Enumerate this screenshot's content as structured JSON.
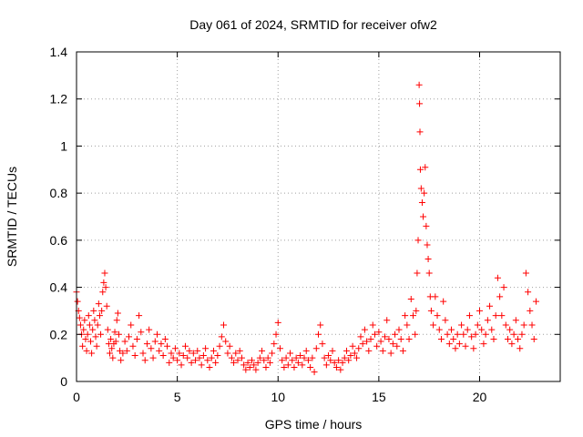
{
  "chart_data": {
    "type": "scatter",
    "title": "Day 061 of 2024, SRMTID for receiver ofw2",
    "xlabel": "GPS time / hours",
    "ylabel": "SRMTID / TECUs",
    "xlim": [
      0,
      24
    ],
    "ylim": [
      0,
      1.4
    ],
    "xticks": [
      0,
      5,
      10,
      15,
      20
    ],
    "xtick_labels": [
      "0",
      "5",
      "10",
      "15",
      "20"
    ],
    "yticks": [
      0,
      0.2,
      0.4,
      0.6,
      0.8,
      1.0,
      1.2,
      1.4
    ],
    "ytick_labels": [
      "0",
      "0.2",
      "0.4",
      "0.6",
      "0.8",
      "1",
      "1.2",
      "1.4"
    ],
    "grid": true,
    "marker": "+",
    "series_color": "#ff0000",
    "series": [
      {
        "name": "SRMTID",
        "points": [
          [
            0.0,
            0.38
          ],
          [
            0.05,
            0.34
          ],
          [
            0.1,
            0.3
          ],
          [
            0.15,
            0.27
          ],
          [
            0.2,
            0.24
          ],
          [
            0.25,
            0.2
          ],
          [
            0.3,
            0.15
          ],
          [
            0.35,
            0.22
          ],
          [
            0.4,
            0.26
          ],
          [
            0.45,
            0.18
          ],
          [
            0.5,
            0.13
          ],
          [
            0.55,
            0.2
          ],
          [
            0.6,
            0.28
          ],
          [
            0.65,
            0.24
          ],
          [
            0.7,
            0.17
          ],
          [
            0.75,
            0.12
          ],
          [
            0.8,
            0.22
          ],
          [
            0.85,
            0.3
          ],
          [
            0.9,
            0.26
          ],
          [
            0.95,
            0.19
          ],
          [
            1.0,
            0.15
          ],
          [
            1.05,
            0.24
          ],
          [
            1.1,
            0.33
          ],
          [
            1.15,
            0.28
          ],
          [
            1.2,
            0.2
          ],
          [
            1.25,
            0.3
          ],
          [
            1.3,
            0.38
          ],
          [
            1.35,
            0.42
          ],
          [
            1.4,
            0.46
          ],
          [
            1.45,
            0.4
          ],
          [
            1.5,
            0.32
          ],
          [
            1.55,
            0.22
          ],
          [
            1.6,
            0.16
          ],
          [
            1.65,
            0.12
          ],
          [
            1.7,
            0.18
          ],
          [
            1.75,
            0.14
          ],
          [
            1.8,
            0.1
          ],
          [
            1.85,
            0.16
          ],
          [
            1.9,
            0.21
          ],
          [
            1.95,
            0.17
          ],
          [
            2.0,
            0.26
          ],
          [
            2.05,
            0.29
          ],
          [
            2.1,
            0.2
          ],
          [
            2.15,
            0.13
          ],
          [
            2.2,
            0.09
          ],
          [
            2.3,
            0.12
          ],
          [
            2.4,
            0.17
          ],
          [
            2.5,
            0.13
          ],
          [
            2.6,
            0.19
          ],
          [
            2.7,
            0.24
          ],
          [
            2.8,
            0.15
          ],
          [
            2.9,
            0.11
          ],
          [
            3.0,
            0.18
          ],
          [
            3.1,
            0.28
          ],
          [
            3.2,
            0.21
          ],
          [
            3.3,
            0.12
          ],
          [
            3.4,
            0.09
          ],
          [
            3.5,
            0.16
          ],
          [
            3.6,
            0.22
          ],
          [
            3.7,
            0.14
          ],
          [
            3.8,
            0.1
          ],
          [
            3.9,
            0.17
          ],
          [
            4.0,
            0.2
          ],
          [
            4.1,
            0.13
          ],
          [
            4.2,
            0.16
          ],
          [
            4.3,
            0.11
          ],
          [
            4.4,
            0.18
          ],
          [
            4.5,
            0.15
          ],
          [
            4.6,
            0.08
          ],
          [
            4.7,
            0.12
          ],
          [
            4.8,
            0.1
          ],
          [
            4.9,
            0.14
          ],
          [
            5.0,
            0.09
          ],
          [
            5.1,
            0.12
          ],
          [
            5.2,
            0.07
          ],
          [
            5.3,
            0.11
          ],
          [
            5.4,
            0.15
          ],
          [
            5.5,
            0.1
          ],
          [
            5.6,
            0.13
          ],
          [
            5.7,
            0.08
          ],
          [
            5.8,
            0.12
          ],
          [
            5.9,
            0.09
          ],
          [
            6.0,
            0.13
          ],
          [
            6.1,
            0.1
          ],
          [
            6.2,
            0.07
          ],
          [
            6.3,
            0.11
          ],
          [
            6.4,
            0.14
          ],
          [
            6.5,
            0.09
          ],
          [
            6.6,
            0.06
          ],
          [
            6.7,
            0.1
          ],
          [
            6.8,
            0.13
          ],
          [
            6.9,
            0.08
          ],
          [
            7.0,
            0.11
          ],
          [
            7.1,
            0.15
          ],
          [
            7.2,
            0.19
          ],
          [
            7.3,
            0.24
          ],
          [
            7.4,
            0.17
          ],
          [
            7.5,
            0.12
          ],
          [
            7.6,
            0.15
          ],
          [
            7.7,
            0.1
          ],
          [
            7.8,
            0.08
          ],
          [
            7.9,
            0.12
          ],
          [
            8.0,
            0.09
          ],
          [
            8.1,
            0.13
          ],
          [
            8.2,
            0.1
          ],
          [
            8.3,
            0.07
          ],
          [
            8.4,
            0.05
          ],
          [
            8.5,
            0.08
          ],
          [
            8.6,
            0.06
          ],
          [
            8.7,
            0.09
          ],
          [
            8.8,
            0.07
          ],
          [
            8.9,
            0.05
          ],
          [
            9.0,
            0.08
          ],
          [
            9.1,
            0.1
          ],
          [
            9.2,
            0.13
          ],
          [
            9.3,
            0.09
          ],
          [
            9.4,
            0.06
          ],
          [
            9.5,
            0.1
          ],
          [
            9.6,
            0.08
          ],
          [
            9.7,
            0.12
          ],
          [
            9.8,
            0.16
          ],
          [
            9.9,
            0.2
          ],
          [
            10.0,
            0.25
          ],
          [
            10.1,
            0.14
          ],
          [
            10.2,
            0.09
          ],
          [
            10.3,
            0.06
          ],
          [
            10.4,
            0.1
          ],
          [
            10.5,
            0.07
          ],
          [
            10.6,
            0.12
          ],
          [
            10.7,
            0.09
          ],
          [
            10.8,
            0.06
          ],
          [
            10.9,
            0.1
          ],
          [
            11.0,
            0.08
          ],
          [
            11.1,
            0.11
          ],
          [
            11.2,
            0.07
          ],
          [
            11.3,
            0.1
          ],
          [
            11.4,
            0.13
          ],
          [
            11.5,
            0.09
          ],
          [
            11.6,
            0.06
          ],
          [
            11.7,
            0.1
          ],
          [
            11.8,
            0.04
          ],
          [
            11.9,
            0.14
          ],
          [
            12.0,
            0.2
          ],
          [
            12.1,
            0.24
          ],
          [
            12.2,
            0.16
          ],
          [
            12.3,
            0.1
          ],
          [
            12.4,
            0.07
          ],
          [
            12.5,
            0.11
          ],
          [
            12.6,
            0.09
          ],
          [
            12.7,
            0.13
          ],
          [
            12.8,
            0.08
          ],
          [
            12.9,
            0.06
          ],
          [
            13.0,
            0.09
          ],
          [
            13.1,
            0.05
          ],
          [
            13.2,
            0.08
          ],
          [
            13.3,
            0.1
          ],
          [
            13.4,
            0.13
          ],
          [
            13.5,
            0.09
          ],
          [
            13.6,
            0.11
          ],
          [
            13.7,
            0.15
          ],
          [
            13.8,
            0.12
          ],
          [
            13.9,
            0.1
          ],
          [
            14.0,
            0.14
          ],
          [
            14.1,
            0.19
          ],
          [
            14.2,
            0.16
          ],
          [
            14.3,
            0.22
          ],
          [
            14.4,
            0.17
          ],
          [
            14.5,
            0.13
          ],
          [
            14.6,
            0.18
          ],
          [
            14.7,
            0.24
          ],
          [
            14.8,
            0.2
          ],
          [
            14.9,
            0.15
          ],
          [
            15.0,
            0.21
          ],
          [
            15.1,
            0.17
          ],
          [
            15.2,
            0.13
          ],
          [
            15.3,
            0.19
          ],
          [
            15.4,
            0.26
          ],
          [
            15.5,
            0.18
          ],
          [
            15.6,
            0.12
          ],
          [
            15.7,
            0.16
          ],
          [
            15.8,
            0.2
          ],
          [
            15.9,
            0.15
          ],
          [
            16.0,
            0.22
          ],
          [
            16.1,
            0.18
          ],
          [
            16.2,
            0.13
          ],
          [
            16.3,
            0.28
          ],
          [
            16.4,
            0.24
          ],
          [
            16.5,
            0.18
          ],
          [
            16.6,
            0.35
          ],
          [
            16.7,
            0.28
          ],
          [
            16.8,
            0.2
          ],
          [
            16.85,
            0.3
          ],
          [
            16.9,
            0.46
          ],
          [
            16.95,
            0.6
          ],
          [
            17.0,
            1.26
          ],
          [
            17.02,
            1.18
          ],
          [
            17.04,
            1.06
          ],
          [
            17.06,
            0.9
          ],
          [
            17.1,
            0.82
          ],
          [
            17.15,
            0.76
          ],
          [
            17.2,
            0.7
          ],
          [
            17.25,
            0.8
          ],
          [
            17.3,
            0.91
          ],
          [
            17.35,
            0.66
          ],
          [
            17.4,
            0.58
          ],
          [
            17.45,
            0.52
          ],
          [
            17.5,
            0.46
          ],
          [
            17.55,
            0.36
          ],
          [
            17.6,
            0.3
          ],
          [
            17.7,
            0.24
          ],
          [
            17.8,
            0.36
          ],
          [
            17.9,
            0.28
          ],
          [
            18.0,
            0.22
          ],
          [
            18.1,
            0.18
          ],
          [
            18.2,
            0.34
          ],
          [
            18.3,
            0.26
          ],
          [
            18.4,
            0.2
          ],
          [
            18.5,
            0.16
          ],
          [
            18.6,
            0.22
          ],
          [
            18.7,
            0.18
          ],
          [
            18.8,
            0.14
          ],
          [
            18.9,
            0.2
          ],
          [
            19.0,
            0.16
          ],
          [
            19.1,
            0.24
          ],
          [
            19.2,
            0.2
          ],
          [
            19.3,
            0.15
          ],
          [
            19.4,
            0.22
          ],
          [
            19.5,
            0.28
          ],
          [
            19.6,
            0.19
          ],
          [
            19.7,
            0.14
          ],
          [
            19.8,
            0.2
          ],
          [
            19.9,
            0.24
          ],
          [
            20.0,
            0.3
          ],
          [
            20.1,
            0.22
          ],
          [
            20.2,
            0.16
          ],
          [
            20.3,
            0.2
          ],
          [
            20.4,
            0.26
          ],
          [
            20.5,
            0.32
          ],
          [
            20.6,
            0.22
          ],
          [
            20.7,
            0.18
          ],
          [
            20.8,
            0.28
          ],
          [
            20.9,
            0.44
          ],
          [
            21.0,
            0.36
          ],
          [
            21.1,
            0.28
          ],
          [
            21.2,
            0.4
          ],
          [
            21.3,
            0.24
          ],
          [
            21.4,
            0.18
          ],
          [
            21.5,
            0.22
          ],
          [
            21.6,
            0.16
          ],
          [
            21.7,
            0.2
          ],
          [
            21.8,
            0.26
          ],
          [
            21.9,
            0.18
          ],
          [
            22.0,
            0.14
          ],
          [
            22.1,
            0.2
          ],
          [
            22.2,
            0.24
          ],
          [
            22.3,
            0.46
          ],
          [
            22.4,
            0.38
          ],
          [
            22.5,
            0.3
          ],
          [
            22.6,
            0.24
          ],
          [
            22.7,
            0.18
          ],
          [
            22.8,
            0.34
          ]
        ]
      }
    ]
  }
}
